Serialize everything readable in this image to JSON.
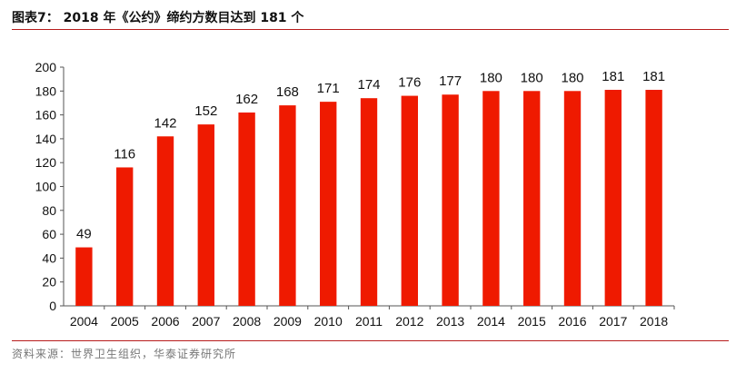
{
  "header": {
    "title": "图表7：  2018 年《公约》缔约方数目达到 181 个"
  },
  "footer": {
    "source": "资料来源：世界卫生组织，华泰证券研究所"
  },
  "colors": {
    "bar": "#ef1a00",
    "rule": "#b71c1c"
  },
  "chart_data": {
    "type": "bar",
    "title": "",
    "xlabel": "",
    "ylabel": "",
    "categories": [
      "2004",
      "2005",
      "2006",
      "2007",
      "2008",
      "2009",
      "2010",
      "2011",
      "2012",
      "2013",
      "2014",
      "2015",
      "2016",
      "2017",
      "2018"
    ],
    "values": [
      49,
      116,
      142,
      152,
      162,
      168,
      171,
      174,
      176,
      177,
      180,
      180,
      180,
      181,
      181
    ],
    "ylim": [
      0,
      200
    ],
    "yticks": [
      0,
      20,
      40,
      60,
      80,
      100,
      120,
      140,
      160,
      180,
      200
    ],
    "grid": false,
    "legend": "none",
    "data_labels": true
  }
}
